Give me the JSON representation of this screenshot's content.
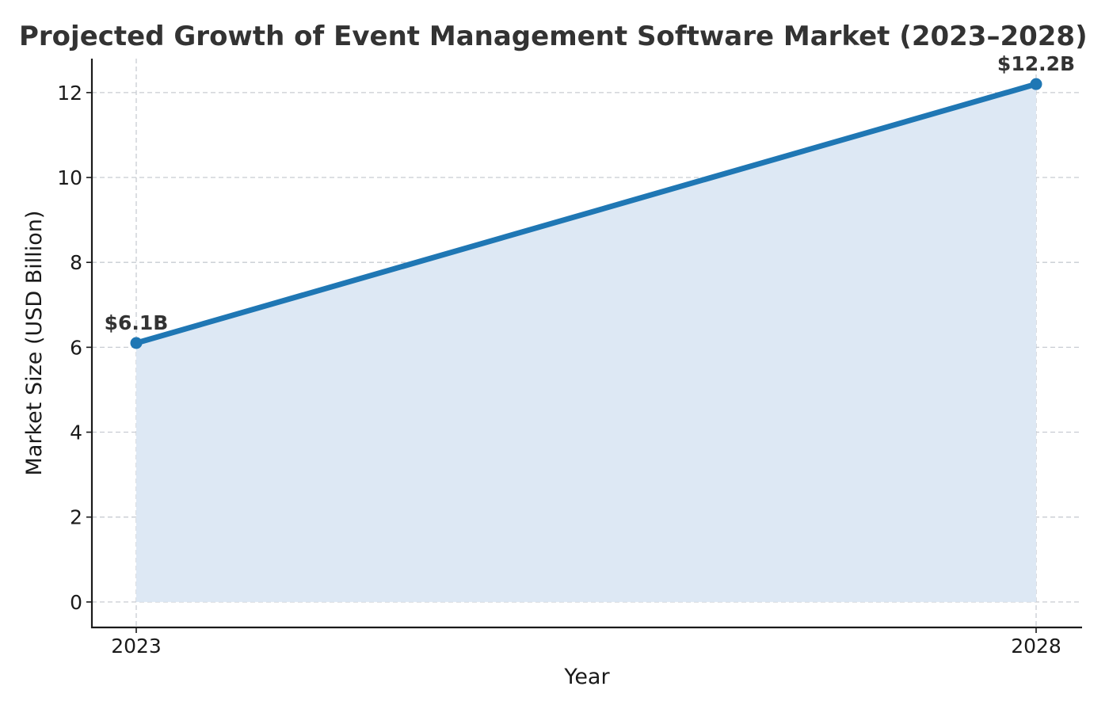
{
  "chart_data": {
    "type": "area",
    "title": "Projected Growth of Event Management Software Market (2023–2028)",
    "xlabel": "Year",
    "ylabel": "Market Size (USD Billion)",
    "x": [
      2023,
      2028
    ],
    "x_tick_labels": [
      "2023",
      "2028"
    ],
    "y_ticks": [
      0,
      2,
      4,
      6,
      8,
      10,
      12
    ],
    "y_tick_labels": [
      "0",
      "2",
      "4",
      "6",
      "8",
      "10",
      "12"
    ],
    "ylim": [
      -0.6,
      12.8
    ],
    "series": [
      {
        "values": [
          6.1,
          12.2
        ],
        "point_labels": [
          "$6.1B",
          "$12.2B"
        ],
        "color": "#1f77b4",
        "fill_color": "#dde8f4"
      }
    ],
    "grid": true,
    "legend": "none"
  }
}
